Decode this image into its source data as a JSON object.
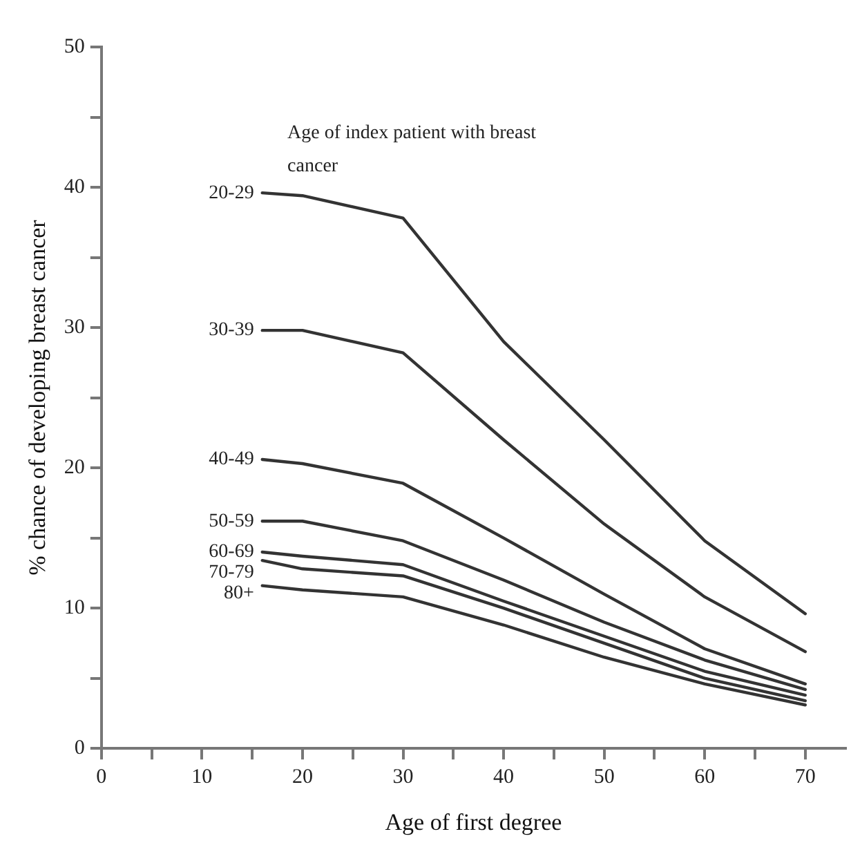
{
  "chart_data": {
    "type": "line",
    "xlabel": "Age of first degree",
    "ylabel": "% chance of developing breast cancer",
    "annotations": [
      "Age of index patient with breast cancer"
    ],
    "x": [
      16,
      20,
      30,
      40,
      50,
      60,
      70
    ],
    "series": [
      {
        "name": "20-29",
        "color": "#333333",
        "values": [
          39.6,
          39.4,
          37.8,
          29,
          22,
          14.8,
          9.6
        ]
      },
      {
        "name": "30-39",
        "color": "#333333",
        "values": [
          29.8,
          29.8,
          28.2,
          22,
          16,
          10.8,
          6.9
        ]
      },
      {
        "name": "40-49",
        "color": "#333333",
        "values": [
          20.6,
          20.3,
          18.9,
          15,
          11,
          7.1,
          4.6
        ]
      },
      {
        "name": "50-59",
        "color": "#333333",
        "values": [
          16.2,
          16.2,
          14.8,
          12,
          9,
          6.3,
          4.2
        ]
      },
      {
        "name": "60-69",
        "color": "#333333",
        "values": [
          14,
          13.7,
          13.1,
          10.5,
          8,
          5.5,
          3.8
        ]
      },
      {
        "name": "70-79",
        "color": "#333333",
        "values": [
          13.4,
          12.8,
          12.3,
          10,
          7.5,
          5,
          3.4
        ]
      },
      {
        "name": "80+",
        "color": "#333333",
        "values": [
          11.6,
          11.3,
          10.8,
          8.8,
          6.5,
          4.6,
          3.1
        ]
      }
    ],
    "xlim": [
      0,
      74
    ],
    "ylim": [
      0,
      50
    ],
    "xticks": [
      0,
      {
        "value": 5,
        "label": null
      },
      10,
      {
        "value": 15,
        "label": null
      },
      20,
      {
        "value": 25,
        "label": null
      },
      30,
      {
        "value": 35,
        "label": null
      },
      40,
      {
        "value": 45,
        "label": null
      },
      50,
      {
        "value": 55,
        "label": null
      },
      60,
      {
        "value": 65,
        "label": null
      },
      70
    ],
    "yticks": [
      0,
      {
        "value": 5,
        "label": null
      },
      10,
      {
        "value": 15,
        "label": null
      },
      20,
      {
        "value": 25,
        "label": null
      },
      30,
      {
        "value": 35,
        "label": null
      },
      40,
      {
        "value": 45,
        "label": null
      },
      50
    ],
    "grid": false,
    "legend": false,
    "marker": "none",
    "line_style": "solid"
  }
}
